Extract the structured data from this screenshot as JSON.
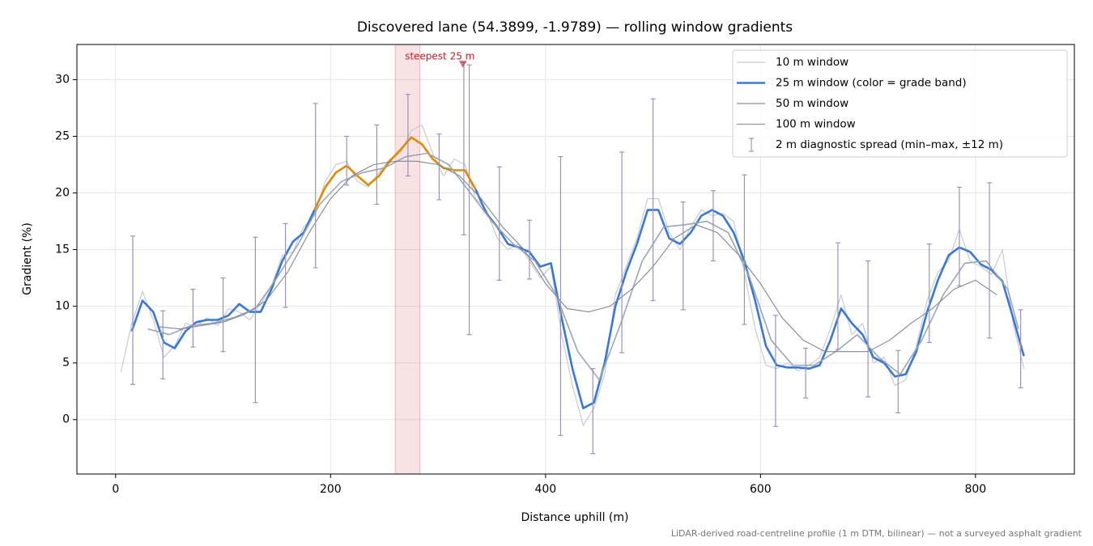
{
  "chart_data": {
    "type": "line",
    "title": "Discovered lane (54.3899, -1.9789) — rolling window gradients",
    "xlabel": "Distance uphill (m)",
    "ylabel": "Gradient (%)",
    "footnote": "LiDAR-derived road-centreline profile (1 m DTM, bilinear) — not a surveyed asphalt gradient",
    "xlim": [
      -36,
      892
    ],
    "ylim": [
      -4.8,
      33.1
    ],
    "xticks": [
      0,
      200,
      400,
      600,
      800
    ],
    "yticks": [
      0,
      5,
      10,
      15,
      20,
      25,
      30
    ],
    "grid": true,
    "legend": "upper right",
    "series": [
      {
        "name": "10 m window",
        "color": "#c5ccd6",
        "width": 1.2,
        "x": [
          5,
          15,
          25,
          35,
          45,
          55,
          65,
          75,
          85,
          95,
          105,
          115,
          125,
          135,
          145,
          155,
          165,
          175,
          185,
          195,
          205,
          215,
          225,
          235,
          245,
          255,
          265,
          275,
          285,
          295,
          305,
          315,
          325,
          335,
          345,
          355,
          365,
          375,
          385,
          395,
          405,
          415,
          425,
          435,
          445,
          455,
          465,
          475,
          485,
          495,
          505,
          515,
          525,
          535,
          545,
          555,
          565,
          575,
          585,
          595,
          605,
          615,
          625,
          635,
          645,
          655,
          665,
          675,
          685,
          695,
          705,
          715,
          725,
          735,
          745,
          755,
          765,
          775,
          785,
          795,
          805,
          815,
          825,
          835,
          845
        ],
        "values": [
          4.2,
          8.5,
          11.3,
          8.8,
          5.5,
          6.5,
          8.5,
          8.2,
          9.0,
          8.3,
          9.8,
          9.5,
          8.8,
          10.2,
          11.8,
          14.5,
          14.8,
          17.0,
          18.0,
          21.0,
          22.5,
          22.8,
          21.0,
          20.5,
          21.8,
          23.0,
          23.5,
          25.5,
          26.0,
          23.5,
          21.5,
          23.0,
          22.5,
          19.5,
          18.5,
          16.0,
          15.0,
          15.5,
          14.0,
          12.5,
          13.5,
          7.5,
          3.0,
          -0.5,
          1.0,
          4.0,
          11.0,
          13.5,
          16.0,
          19.5,
          19.5,
          16.5,
          15.0,
          17.0,
          18.5,
          18.0,
          18.2,
          17.5,
          13.0,
          8.0,
          4.8,
          4.5,
          5.0,
          4.3,
          4.8,
          5.5,
          8.0,
          11.0,
          7.5,
          8.5,
          5.0,
          5.5,
          3.0,
          3.5,
          6.5,
          10.5,
          13.0,
          14.0,
          16.8,
          14.0,
          13.5,
          12.8,
          15.0,
          8.5,
          4.5
        ]
      },
      {
        "name": "25 m window (color = grade band)",
        "color": "#3a78d4",
        "width": 2.6,
        "color_bands": [
          {
            "min": 20,
            "color": "#e08a00"
          }
        ],
        "x": [
          15,
          25,
          35,
          45,
          55,
          65,
          75,
          85,
          95,
          105,
          115,
          125,
          135,
          145,
          155,
          165,
          175,
          185,
          195,
          205,
          215,
          225,
          235,
          245,
          255,
          265,
          275,
          285,
          295,
          305,
          315,
          325,
          335,
          345,
          355,
          365,
          375,
          385,
          395,
          405,
          415,
          425,
          435,
          445,
          455,
          465,
          475,
          485,
          495,
          505,
          515,
          525,
          535,
          545,
          555,
          565,
          575,
          585,
          595,
          605,
          615,
          625,
          635,
          645,
          655,
          665,
          675,
          685,
          695,
          705,
          715,
          725,
          735,
          745,
          755,
          765,
          775,
          785,
          795,
          805,
          815,
          825,
          835,
          845
        ],
        "values": [
          7.8,
          10.5,
          9.5,
          6.8,
          6.3,
          7.8,
          8.6,
          8.8,
          8.8,
          9.2,
          10.2,
          9.5,
          9.5,
          11.5,
          14.0,
          15.7,
          16.5,
          18.5,
          20.5,
          21.8,
          22.4,
          21.5,
          20.7,
          21.5,
          22.8,
          23.8,
          24.9,
          24.3,
          23.0,
          22.2,
          22.0,
          22.0,
          20.3,
          18.2,
          17.0,
          15.5,
          15.2,
          14.8,
          13.5,
          13.8,
          9.0,
          4.5,
          1.0,
          1.5,
          5.0,
          10.0,
          13.0,
          15.5,
          18.5,
          18.5,
          16.0,
          15.5,
          16.5,
          18.0,
          18.5,
          18.0,
          16.5,
          14.0,
          10.5,
          6.5,
          4.8,
          4.6,
          4.6,
          4.5,
          4.8,
          7.0,
          9.8,
          8.5,
          7.5,
          5.5,
          5.0,
          3.8,
          4.0,
          6.0,
          9.5,
          12.3,
          14.5,
          15.2,
          14.8,
          13.7,
          13.2,
          12.2,
          9.0,
          5.6
        ]
      },
      {
        "name": "50 m window",
        "color": "#9aa6b4",
        "width": 1.6,
        "x": [
          30,
          50,
          70,
          90,
          110,
          130,
          150,
          170,
          190,
          210,
          230,
          250,
          270,
          290,
          310,
          330,
          350,
          370,
          390,
          410,
          430,
          450,
          470,
          490,
          510,
          530,
          550,
          570,
          590,
          610,
          630,
          650,
          670,
          690,
          710,
          730,
          750,
          770,
          790,
          810,
          830,
          840
        ],
        "values": [
          8.0,
          7.5,
          8.3,
          8.5,
          9.0,
          9.8,
          12.5,
          15.5,
          19.0,
          21.0,
          21.8,
          22.2,
          23.2,
          23.5,
          22.5,
          20.0,
          17.5,
          15.5,
          14.0,
          11.0,
          6.0,
          3.5,
          8.5,
          14.0,
          17.0,
          17.2,
          17.5,
          16.5,
          12.5,
          7.0,
          4.8,
          4.8,
          6.0,
          7.5,
          5.5,
          4.0,
          7.0,
          11.0,
          13.8,
          14.0,
          11.5,
          8.0
        ]
      },
      {
        "name": "100 m window",
        "color": "#7f8790",
        "width": 1.1,
        "x": [
          40,
          60,
          80,
          100,
          120,
          140,
          160,
          180,
          200,
          220,
          240,
          260,
          280,
          300,
          320,
          340,
          360,
          380,
          400,
          420,
          440,
          460,
          480,
          500,
          520,
          540,
          560,
          580,
          600,
          620,
          640,
          660,
          680,
          700,
          720,
          740,
          760,
          780,
          800,
          820
        ],
        "values": [
          8.2,
          8.0,
          8.3,
          8.6,
          9.3,
          10.5,
          13.0,
          16.5,
          19.5,
          21.5,
          22.5,
          22.8,
          22.8,
          22.5,
          21.5,
          19.5,
          17.0,
          15.0,
          12.0,
          9.8,
          9.5,
          10.0,
          11.5,
          13.5,
          16.0,
          17.2,
          16.5,
          14.5,
          12.0,
          9.0,
          7.0,
          6.0,
          6.0,
          6.0,
          7.0,
          8.5,
          9.8,
          11.5,
          12.3,
          11.0
        ]
      }
    ],
    "errorbars": {
      "name": "2 m diagnostic spread (min–max, ±12 m)",
      "color": "#9a93bb",
      "x": [
        16,
        44,
        72,
        100,
        130,
        158,
        186,
        215,
        243,
        272,
        301,
        324,
        329,
        357,
        385,
        414,
        444,
        471,
        500,
        528,
        556,
        585,
        614,
        642,
        672,
        700,
        728,
        757,
        785,
        813,
        842
      ],
      "low": [
        3.1,
        3.6,
        6.4,
        6.0,
        1.5,
        9.9,
        13.4,
        20.7,
        19.0,
        21.5,
        19.4,
        16.3,
        7.5,
        12.3,
        12.4,
        -1.4,
        -3.0,
        5.9,
        10.5,
        9.7,
        14.0,
        8.4,
        -0.6,
        1.9,
        6.2,
        2.0,
        0.6,
        6.8,
        11.8,
        7.2,
        2.8
      ],
      "high": [
        16.2,
        9.6,
        11.5,
        12.5,
        16.1,
        17.3,
        27.9,
        25.0,
        26.0,
        28.7,
        25.2,
        31.5,
        31.3,
        22.3,
        17.6,
        23.2,
        4.5,
        23.6,
        28.3,
        19.2,
        20.2,
        21.6,
        9.2,
        6.3,
        15.6,
        14.0,
        6.1,
        15.5,
        20.5,
        20.9,
        9.7
      ]
    },
    "steepest": {
      "label": "steepest 25 m",
      "x": 323,
      "y": 31.4,
      "span": [
        260,
        283
      ],
      "color": "#c0212f"
    }
  }
}
